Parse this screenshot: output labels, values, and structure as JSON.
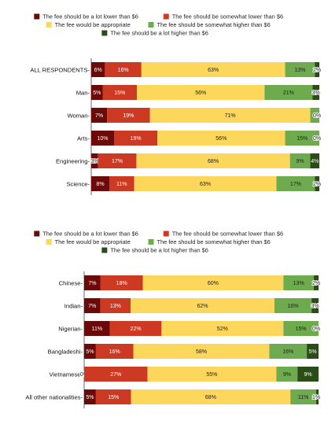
{
  "colors": {
    "lot_lower": "#6b0a08",
    "somewhat_lower": "#cc3a24",
    "appropriate": "#fdd65c",
    "somewhat_higher": "#6eaa4e",
    "lot_higher": "#2a4d17"
  },
  "chart_data": [
    {
      "type": "bar",
      "orientation": "horizontal",
      "stacked": true,
      "legend_position": "top",
      "xlim": [
        0,
        100
      ],
      "categories": [
        "ALL RESPONDENTS",
        "Man",
        "Woman",
        "Arts",
        "Engineering",
        "Science"
      ],
      "series": [
        {
          "name": "The fee should be a lot lower than $6",
          "values": [
            6,
            5,
            7,
            10,
            3,
            8
          ],
          "labels": [
            "6%",
            "5%",
            "7%",
            "10%",
            "3%",
            "8%"
          ]
        },
        {
          "name": "The fee should be somewhat lower than $6",
          "values": [
            16,
            15,
            19,
            19,
            17,
            11
          ],
          "labels": [
            "16%",
            "15%",
            "19%",
            "19%",
            "17%",
            "11%"
          ]
        },
        {
          "name": "The fee would be appropriate",
          "values": [
            63,
            56,
            71,
            56,
            68,
            63
          ],
          "labels": [
            "63%",
            "56%",
            "71%",
            "56%",
            "68%",
            "63%"
          ]
        },
        {
          "name": "The fee should be somewhat higher than $6",
          "values": [
            13,
            21,
            4,
            15,
            9,
            17
          ],
          "labels": [
            "13%",
            "21%",
            "",
            "15%",
            "9%",
            "17%"
          ]
        },
        {
          "name": "The fee should be a lot higher than $6",
          "values": [
            2,
            3,
            0,
            0,
            4,
            2
          ],
          "labels": [
            "2%",
            "3%",
            "0%",
            "0%",
            "4%",
            "2%"
          ]
        }
      ]
    },
    {
      "type": "bar",
      "orientation": "horizontal",
      "stacked": true,
      "legend_position": "top",
      "xlim": [
        0,
        100
      ],
      "categories": [
        "Chinese",
        "Indian",
        "Nigerian",
        "Bangladeshi",
        "Vietnamese",
        "All other nationalities"
      ],
      "series": [
        {
          "name": "The fee should be a lot lower than $6",
          "values": [
            7,
            7,
            11,
            5,
            0,
            5
          ],
          "labels": [
            "7%",
            "7%",
            "11%",
            "5%",
            "0%",
            "5%"
          ]
        },
        {
          "name": "The fee should be somewhat lower than $6",
          "values": [
            18,
            13,
            22,
            16,
            27,
            15
          ],
          "labels": [
            "18%",
            "13%",
            "22%",
            "16%",
            "27%",
            "15%"
          ]
        },
        {
          "name": "The fee would be appropriate",
          "values": [
            60,
            62,
            52,
            58,
            55,
            68
          ],
          "labels": [
            "60%",
            "62%",
            "52%",
            "58%",
            "55%",
            "68%"
          ]
        },
        {
          "name": "The fee should be somewhat higher than $6",
          "values": [
            13,
            16,
            15,
            16,
            9,
            11
          ],
          "labels": [
            "13%",
            "16%",
            "15%",
            "16%",
            "9%",
            "11%"
          ]
        },
        {
          "name": "The fee should be a lot higher than $6",
          "values": [
            2,
            3,
            0,
            5,
            9,
            1
          ],
          "labels": [
            "2%",
            "3%",
            "0%",
            "5%",
            "9%",
            "1%"
          ]
        }
      ]
    }
  ]
}
